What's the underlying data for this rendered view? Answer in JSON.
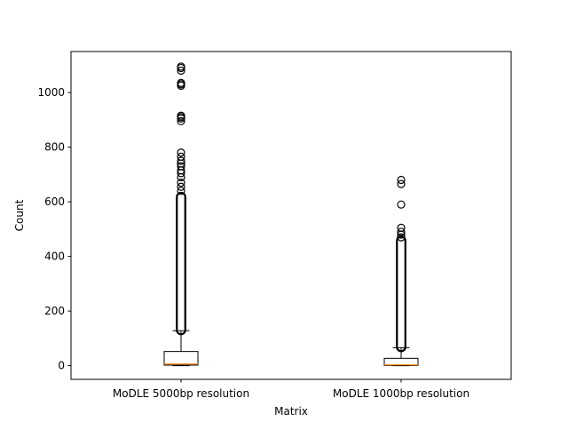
{
  "chart_data": {
    "type": "box",
    "title": "",
    "xlabel": "Matrix",
    "ylabel": "Count",
    "ylim": [
      -50,
      1150
    ],
    "yticks": [
      0,
      200,
      400,
      600,
      800,
      1000
    ],
    "grid": false,
    "legend": "none",
    "colors": {
      "box": "#000000",
      "median": "#ff7f0e",
      "flier": "#000000"
    },
    "categories": [
      "MoDLE 5000bp resolution",
      "MoDLE 1000bp resolution"
    ],
    "boxes": [
      {
        "category": "MoDLE 5000bp resolution",
        "whisker_low": 0,
        "q1": 2,
        "median": 6,
        "q3": 52,
        "whisker_high": 128,
        "outlier_range": [
          128,
          620
        ],
        "outliers": [
          640,
          655,
          670,
          690,
          705,
          715,
          730,
          740,
          750,
          765,
          780,
          895,
          905,
          910,
          915,
          1025,
          1030,
          1035,
          1080,
          1090,
          1095
        ]
      },
      {
        "category": "MoDLE 1000bp resolution",
        "whisker_low": 0,
        "q1": 1,
        "median": 3,
        "q3": 27,
        "whisker_high": 66,
        "outlier_range": [
          66,
          460
        ],
        "outliers": [
          470,
          480,
          490,
          505,
          590,
          665,
          680
        ]
      }
    ]
  }
}
